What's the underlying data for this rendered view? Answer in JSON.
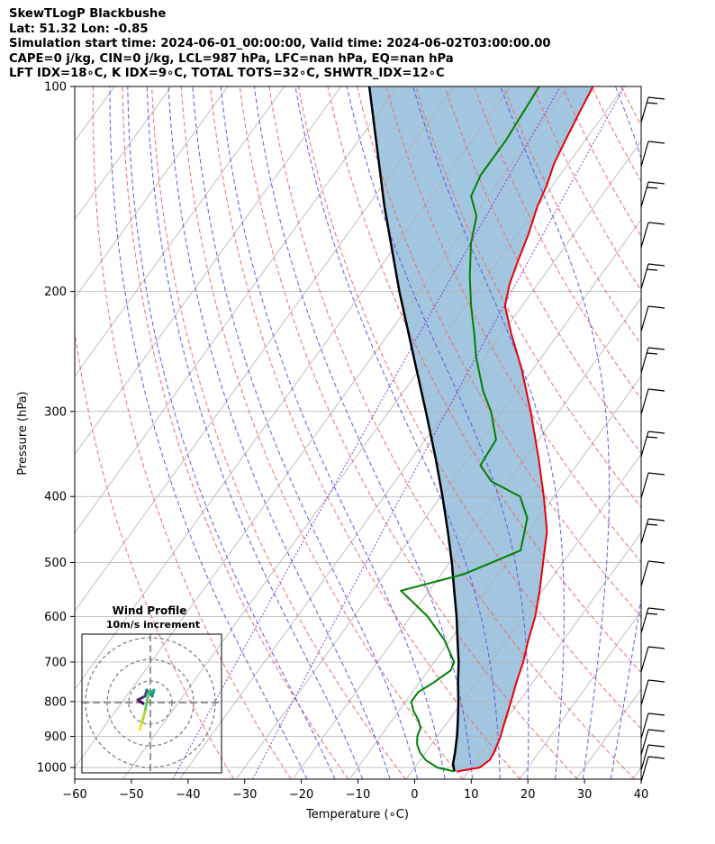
{
  "header": {
    "title": "SkewTLogP Blackbushe",
    "latlon": "Lat: 51.32   Lon: -0.85",
    "times": "Simulation start time: 2024-06-01_00:00:00, Valid time: 2024-06-02T03:00:00.00",
    "indices1": "CAPE=0 j/kg, CIN=0 j/kg, LCL=987 hPa, LFC=nan hPa, EQ=nan hPa",
    "indices2": "LFT IDX=18∘C, K IDX=9∘C, TOTAL TOTS=32∘C, SHWTR_IDX=12∘C"
  },
  "chart_data": {
    "type": "line",
    "skew_per_log10_pressure": 87,
    "xlabel": "Temperature (∘C)",
    "ylabel": "Pressure (hPa)",
    "xlim": [
      -60,
      40
    ],
    "ylim": [
      1040,
      100
    ],
    "x_ticks": [
      "−60",
      "−50",
      "−40",
      "−30",
      "−20",
      "−10",
      "0",
      "10",
      "20",
      "30",
      "40"
    ],
    "x_tick_values": [
      -60,
      -50,
      -40,
      -30,
      -20,
      -10,
      0,
      10,
      20,
      30,
      40
    ],
    "y_ticks": [
      100,
      200,
      300,
      400,
      500,
      600,
      700,
      800,
      900,
      1000
    ],
    "grid": true,
    "colors": {
      "temperature": "#e8000b",
      "dewpoint": "#008000",
      "parcel": "#000000",
      "cape_fill": "#a2c6df",
      "dry_adiabats": "#f06a6a",
      "moist_adiabats": "#5a5ae8",
      "mixing_ratio": "#8b3bd9",
      "isotherms": "#b0b0b0"
    },
    "series": [
      {
        "role": "temperature",
        "points": [
          [
            1013,
            8
          ],
          [
            1000,
            11.5
          ],
          [
            975,
            12.3
          ],
          [
            950,
            12.1
          ],
          [
            900,
            11.2
          ],
          [
            850,
            9.9
          ],
          [
            800,
            8.6
          ],
          [
            750,
            7.1
          ],
          [
            700,
            5.7
          ],
          [
            650,
            3.8
          ],
          [
            600,
            2
          ],
          [
            550,
            -0.5
          ],
          [
            500,
            -3.5
          ],
          [
            450,
            -6.8
          ],
          [
            400,
            -11.8
          ],
          [
            350,
            -17.8
          ],
          [
            300,
            -25
          ],
          [
            260,
            -32
          ],
          [
            230,
            -38.5
          ],
          [
            210,
            -43
          ],
          [
            195,
            -45
          ],
          [
            180,
            -46.5
          ],
          [
            165,
            -48
          ],
          [
            150,
            -50
          ],
          [
            140,
            -51
          ],
          [
            130,
            -52.5
          ],
          [
            120,
            -53.5
          ],
          [
            110,
            -54.5
          ],
          [
            100,
            -55.5
          ]
        ]
      },
      {
        "role": "dewpoint",
        "points": [
          [
            1013,
            7.5
          ],
          [
            1000,
            4
          ],
          [
            975,
            1
          ],
          [
            950,
            -1
          ],
          [
            925,
            -2.5
          ],
          [
            900,
            -3.5
          ],
          [
            875,
            -4
          ],
          [
            850,
            -5.5
          ],
          [
            825,
            -7.5
          ],
          [
            800,
            -9
          ],
          [
            775,
            -9
          ],
          [
            750,
            -7.5
          ],
          [
            720,
            -6
          ],
          [
            700,
            -6.5
          ],
          [
            650,
            -11
          ],
          [
            600,
            -17
          ],
          [
            550,
            -25
          ],
          [
            520,
            -16
          ],
          [
            480,
            -9
          ],
          [
            430,
            -12
          ],
          [
            400,
            -16
          ],
          [
            380,
            -23
          ],
          [
            360,
            -27
          ],
          [
            330,
            -27.5
          ],
          [
            300,
            -32
          ],
          [
            280,
            -36
          ],
          [
            250,
            -41.5
          ],
          [
            230,
            -45
          ],
          [
            210,
            -49
          ],
          [
            190,
            -53
          ],
          [
            170,
            -57
          ],
          [
            155,
            -59.5
          ],
          [
            145,
            -63
          ],
          [
            135,
            -64
          ],
          [
            120,
            -64
          ],
          [
            100,
            -65
          ]
        ]
      },
      {
        "role": "parcel",
        "points": [
          [
            1013,
            7.5
          ],
          [
            987,
            6.3
          ],
          [
            950,
            5.2
          ],
          [
            900,
            3.5
          ],
          [
            850,
            1.5
          ],
          [
            800,
            -0.7
          ],
          [
            750,
            -3.2
          ],
          [
            700,
            -5.7
          ],
          [
            650,
            -8.7
          ],
          [
            600,
            -11.9
          ],
          [
            550,
            -15.6
          ],
          [
            500,
            -19.6
          ],
          [
            450,
            -24.3
          ],
          [
            400,
            -29.7
          ],
          [
            350,
            -36
          ],
          [
            300,
            -43.5
          ],
          [
            250,
            -52.5
          ],
          [
            200,
            -63.5
          ],
          [
            150,
            -77
          ],
          [
            100,
            -95
          ]
        ]
      }
    ],
    "inset": {
      "title": "Wind Profile",
      "subtitle": "10m/s increment"
    }
  }
}
